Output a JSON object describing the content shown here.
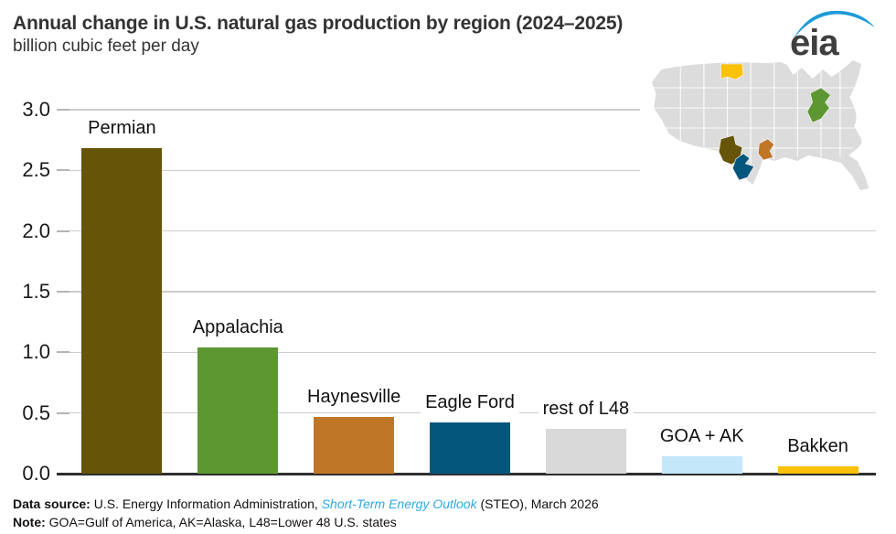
{
  "header": {
    "title": "Annual change in U.S. natural gas production by region (2024–2025)",
    "subtitle": "billion cubic feet per day",
    "logo_text": "eia",
    "logo_swoosh_color": "#1d9bd8",
    "logo_text_color": "#3f3f3f"
  },
  "chart_data": {
    "type": "bar",
    "title": "Annual change in U.S. natural gas production by region (2024–2025)",
    "xlabel": "",
    "ylabel": "billion cubic feet per day",
    "categories": [
      "Permian",
      "Appalachia",
      "Haynesville",
      "Eagle Ford",
      "rest of L48",
      "GOA + AK",
      "Bakken"
    ],
    "values": [
      2.68,
      1.04,
      0.47,
      0.42,
      0.37,
      0.14,
      0.06
    ],
    "bar_colors": [
      "#665408",
      "#5d9732",
      "#bf7627",
      "#05567c",
      "#d9d9d9",
      "#c5e7fa",
      "#f9c108"
    ],
    "ylim": [
      0,
      3.0
    ],
    "ytick_step": 0.5,
    "ytick_labels": [
      "0.0",
      "0.5",
      "1.0",
      "1.5",
      "2.0",
      "2.5",
      "3.0"
    ],
    "grid": true,
    "legend_position": "none — bars labeled directly above each bar"
  },
  "map": {
    "description": "inset map of lower-48 U.S. states with shale regions highlighted",
    "base_color": "#dcdcdc",
    "border_color": "#ffffff",
    "regions": [
      {
        "name": "Bakken",
        "color": "#f9c108"
      },
      {
        "name": "Appalachia",
        "color": "#5d9732"
      },
      {
        "name": "Permian",
        "color": "#665408"
      },
      {
        "name": "Eagle Ford",
        "color": "#05567c"
      },
      {
        "name": "Haynesville",
        "color": "#bf7627"
      }
    ]
  },
  "footer": {
    "data_source_label": "Data source:",
    "data_source_pre": " U.S. Energy Information Administration, ",
    "data_source_link": "Short-Term Energy Outlook",
    "data_source_post": " (STEO), March 2026",
    "note_label": "Note:",
    "note_text": " GOA=Gulf of America, AK=Alaska, L48=Lower 48 U.S. states",
    "link_color": "#2ca9e1"
  }
}
